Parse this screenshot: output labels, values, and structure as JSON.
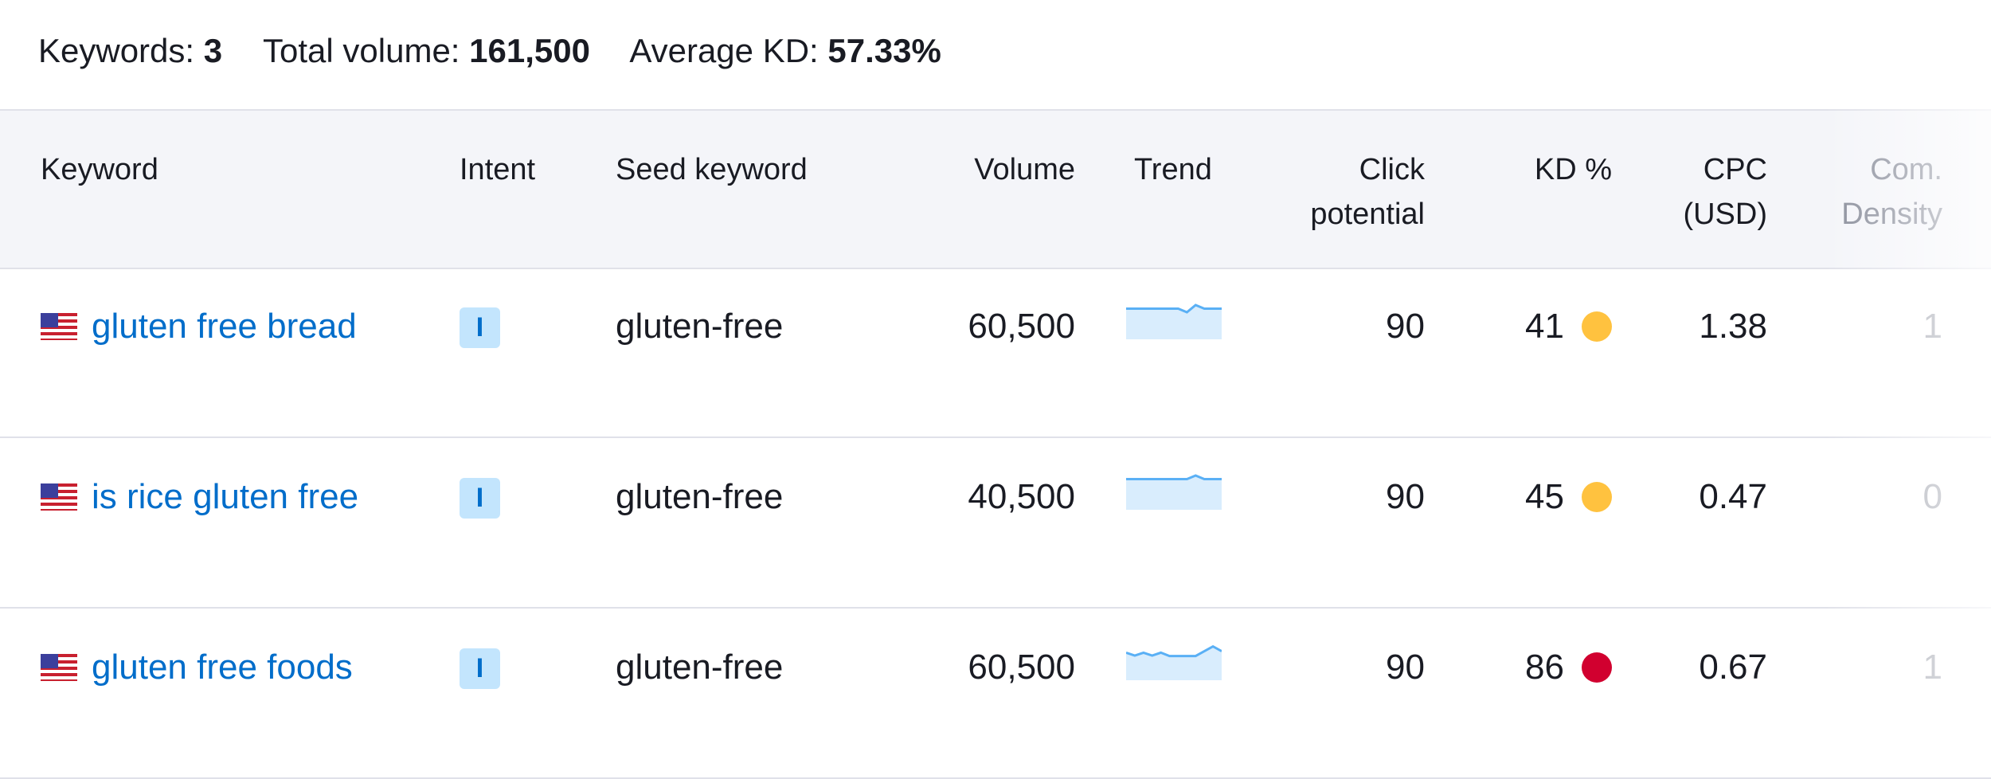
{
  "summary": {
    "keywords_label": "Keywords:",
    "keywords_value": "3",
    "volume_label": "Total volume:",
    "volume_value": "161,500",
    "kd_label": "Average KD:",
    "kd_value": "57.33%"
  },
  "columns": {
    "keyword": "Keyword",
    "intent": "Intent",
    "seed": "Seed keyword",
    "volume": "Volume",
    "trend": "Trend",
    "click_1": "Click",
    "click_2": "potential",
    "kd": "KD %",
    "cpc_1": "CPC",
    "cpc_2": "(USD)",
    "com_1": "Com.",
    "com_2": "Density"
  },
  "colors": {
    "link": "#006dca",
    "kd_medium": "#ffc23f",
    "kd_hard": "#d1002f",
    "trend_line": "#5ab0f5",
    "trend_fill": "#d9edfd"
  },
  "rows": [
    {
      "flag": "us-flag-icon",
      "keyword": "gluten free bread",
      "intent": "I",
      "seed": "gluten-free",
      "volume": "60,500",
      "trend": [
        0.85,
        0.85,
        0.85,
        0.85,
        0.85,
        0.85,
        0.85,
        0.7,
        1,
        0.85,
        0.85,
        0.85
      ],
      "click_potential": "90",
      "kd": "41",
      "kd_color": "#ffc23f",
      "cpc": "1.38",
      "com_density": "1"
    },
    {
      "flag": "us-flag-icon",
      "keyword": "is rice gluten free",
      "intent": "I",
      "seed": "gluten-free",
      "volume": "40,500",
      "trend": [
        0.85,
        0.85,
        0.85,
        0.85,
        0.85,
        0.85,
        0.85,
        0.85,
        1,
        0.85,
        0.85,
        0.85
      ],
      "click_potential": "90",
      "kd": "45",
      "kd_color": "#ffc23f",
      "cpc": "0.47",
      "com_density": "0"
    },
    {
      "flag": "us-flag-icon",
      "keyword": "gluten free foods",
      "intent": "I",
      "seed": "gluten-free",
      "volume": "60,500",
      "trend": [
        0.72,
        0.6,
        0.72,
        0.6,
        0.72,
        0.58,
        0.58,
        0.58,
        0.58,
        0.78,
        0.98,
        0.78
      ],
      "click_potential": "90",
      "kd": "86",
      "kd_color": "#d1002f",
      "cpc": "0.67",
      "com_density": "1"
    }
  ]
}
